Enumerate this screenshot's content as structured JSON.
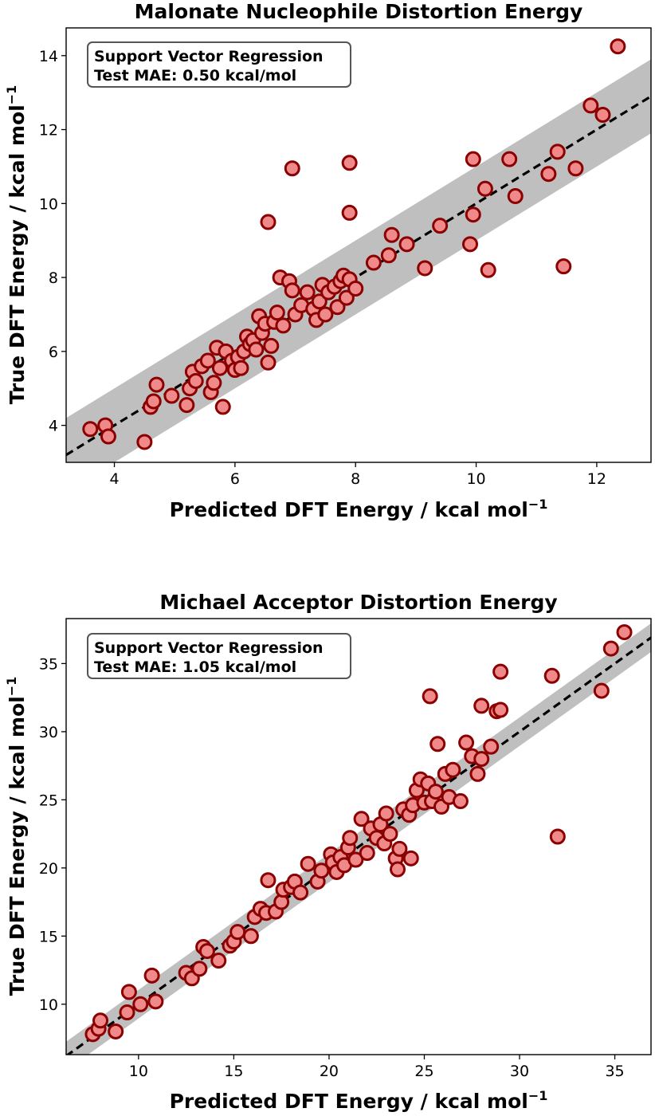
{
  "chart_data": [
    {
      "type": "scatter",
      "title": "Malonate Nucleophile Distortion Energy",
      "xlabel": "Predicted DFT Energy / kcal mol",
      "ylabel": "True DFT Energy / kcal mol",
      "unit_exponent": "−1",
      "annotation": {
        "line1": "Support Vector Regression",
        "line2": "Test MAE: 0.50 kcal/mol"
      },
      "xlim": [
        3.2,
        12.9
      ],
      "ylim": [
        3.0,
        14.75
      ],
      "xticks": [
        4,
        6,
        8,
        10,
        12
      ],
      "yticks": [
        4,
        6,
        8,
        10,
        12,
        14
      ],
      "band_halfwidth": 1.0,
      "marker_face": "#f08a8a",
      "marker_edge": "#8b0000",
      "band_color": "#bfbfbf",
      "series": [
        {
          "x": [
            3.6,
            3.85,
            3.9,
            4.5,
            4.6,
            4.65,
            4.7,
            4.95,
            5.2,
            5.25,
            5.3,
            5.35,
            5.45,
            5.55,
            5.6,
            5.65,
            5.7,
            5.75,
            5.8,
            5.85,
            5.95,
            6.0,
            6.05,
            6.1,
            6.15,
            6.2,
            6.25,
            6.3,
            6.35,
            6.4,
            6.45,
            6.5,
            6.55,
            6.6,
            6.65,
            6.7,
            6.75,
            6.8,
            6.9,
            6.95,
            7.0,
            7.1,
            7.2,
            7.3,
            7.35,
            7.4,
            7.45,
            7.5,
            7.55,
            7.65,
            7.7,
            7.75,
            7.8,
            7.85,
            7.9,
            8.0,
            8.3,
            8.55,
            8.6,
            8.85,
            9.15,
            9.4,
            9.9,
            9.95,
            9.95,
            10.15,
            10.2,
            10.55,
            10.65,
            11.2,
            11.35,
            11.45,
            11.65,
            11.9,
            12.1,
            12.35,
            6.55,
            6.95,
            7.9,
            7.9
          ],
          "y": [
            3.9,
            4.0,
            3.7,
            3.55,
            4.5,
            4.65,
            5.1,
            4.8,
            4.55,
            5.0,
            5.45,
            5.2,
            5.6,
            5.75,
            4.9,
            5.15,
            6.1,
            5.55,
            4.5,
            6.0,
            5.75,
            5.5,
            5.85,
            5.55,
            6.0,
            6.4,
            6.2,
            6.3,
            6.05,
            6.95,
            6.5,
            6.75,
            5.7,
            6.15,
            6.8,
            7.05,
            8.0,
            6.7,
            7.9,
            7.65,
            7.0,
            7.25,
            7.6,
            7.15,
            6.85,
            7.35,
            7.8,
            7.0,
            7.6,
            7.75,
            7.2,
            7.9,
            8.05,
            7.45,
            7.95,
            7.7,
            8.4,
            8.6,
            9.15,
            8.9,
            8.25,
            9.4,
            8.9,
            9.7,
            11.2,
            10.4,
            8.2,
            11.2,
            10.2,
            10.8,
            11.4,
            8.3,
            10.95,
            12.65,
            12.4,
            14.25,
            9.5,
            10.95,
            9.75,
            11.1
          ]
        }
      ]
    },
    {
      "type": "scatter",
      "title": "Michael Acceptor Distortion Energy",
      "xlabel": "Predicted DFT Energy / kcal mol",
      "ylabel": "True DFT Energy / kcal mol",
      "unit_exponent": "−1",
      "annotation": {
        "line1": "Support Vector Regression",
        "line2": "Test MAE: 1.05 kcal/mol"
      },
      "xlim": [
        6.2,
        36.9
      ],
      "ylim": [
        6.3,
        38.3
      ],
      "xticks": [
        10,
        15,
        20,
        25,
        30,
        35
      ],
      "yticks": [
        10,
        15,
        20,
        25,
        30,
        35
      ],
      "band_halfwidth": 1.05,
      "marker_face": "#f08a8a",
      "marker_edge": "#8b0000",
      "band_color": "#bfbfbf",
      "series": [
        {
          "x": [
            7.6,
            7.9,
            8.0,
            8.8,
            9.4,
            9.5,
            10.1,
            10.7,
            10.9,
            12.5,
            12.8,
            13.2,
            13.4,
            13.6,
            14.2,
            14.8,
            15.0,
            15.2,
            15.9,
            16.1,
            16.4,
            16.7,
            16.8,
            17.2,
            17.5,
            17.6,
            18.0,
            18.2,
            18.5,
            18.9,
            19.4,
            19.6,
            20.1,
            20.2,
            20.4,
            20.6,
            20.8,
            21.0,
            21.1,
            21.4,
            21.7,
            22.0,
            22.2,
            22.5,
            22.7,
            22.9,
            23.0,
            23.2,
            23.5,
            23.7,
            23.9,
            24.2,
            24.4,
            24.6,
            24.8,
            25.0,
            25.2,
            25.4,
            25.6,
            25.9,
            26.1,
            26.3,
            26.5,
            26.9,
            27.2,
            27.5,
            27.8,
            28.0,
            28.5,
            28.8,
            29.0,
            31.7,
            32.0,
            34.3,
            34.8,
            35.5,
            23.6,
            24.3,
            25.3,
            25.7,
            29.0,
            28.0
          ],
          "y": [
            7.8,
            8.2,
            8.8,
            8.0,
            9.4,
            10.9,
            10.0,
            12.1,
            10.2,
            12.3,
            11.9,
            12.6,
            14.2,
            13.9,
            13.2,
            14.3,
            14.6,
            15.3,
            15.0,
            16.4,
            17.0,
            16.7,
            19.1,
            16.8,
            17.5,
            18.4,
            18.6,
            19.0,
            18.2,
            20.3,
            19.0,
            19.8,
            21.0,
            20.4,
            19.7,
            20.8,
            20.2,
            21.5,
            22.2,
            20.6,
            23.6,
            21.1,
            22.9,
            22.2,
            23.2,
            21.8,
            24.0,
            22.5,
            20.7,
            21.4,
            24.3,
            23.9,
            24.6,
            25.7,
            26.5,
            24.8,
            26.2,
            24.9,
            25.6,
            24.5,
            26.9,
            25.2,
            27.2,
            24.9,
            29.2,
            28.2,
            26.9,
            28.0,
            28.9,
            31.5,
            34.4,
            34.1,
            22.3,
            33.0,
            36.1,
            37.3,
            19.9,
            20.7,
            32.6,
            29.1,
            31.6,
            31.9
          ]
        }
      ]
    }
  ]
}
